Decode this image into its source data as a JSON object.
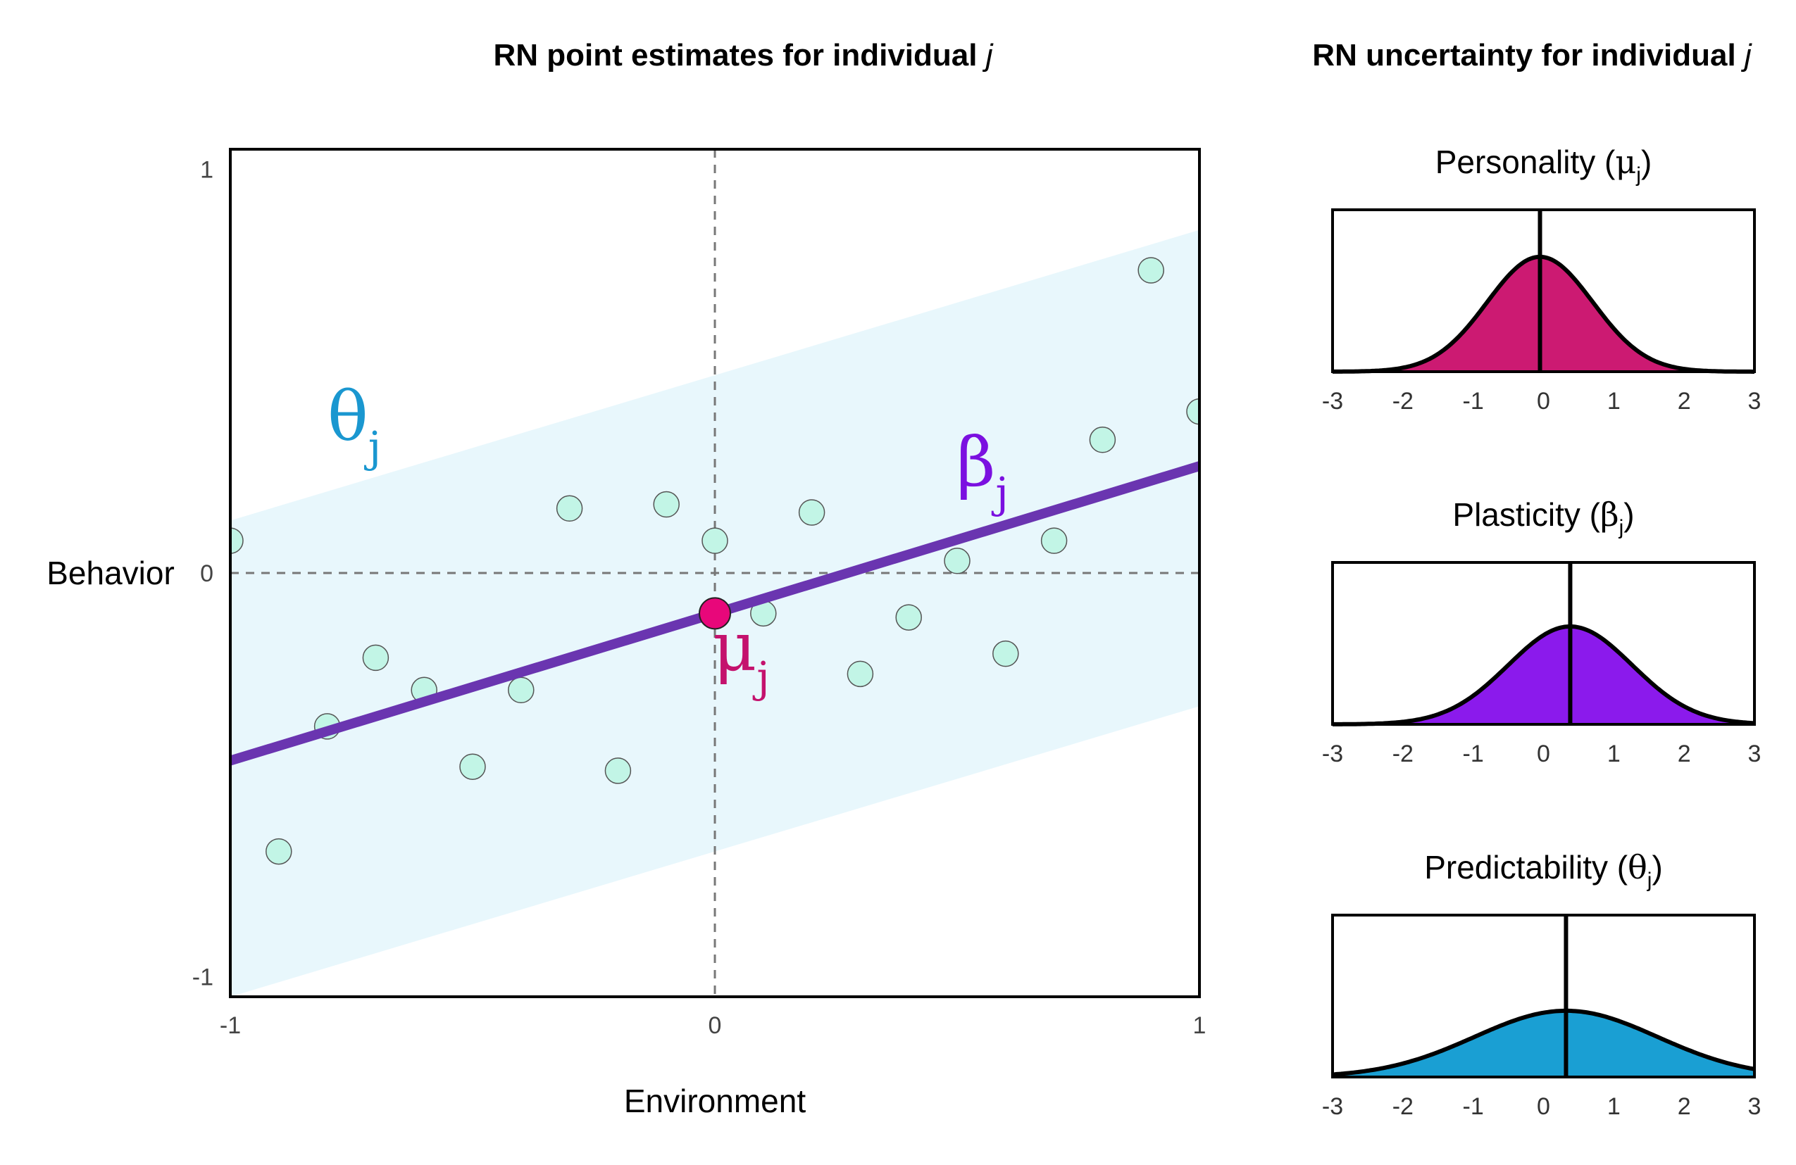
{
  "chart_data": [
    {
      "type": "scatter",
      "title": "RN point estimates for individual",
      "title_italic": "j",
      "xlabel": "Environment",
      "ylabel": "Behavior",
      "xlim": [
        -1,
        1
      ],
      "ylim": [
        -1.05,
        1.05
      ],
      "xticks": [
        "-1",
        "0",
        "1"
      ],
      "yticks": [
        "1",
        "0",
        "-1"
      ],
      "reference_lines": {
        "x": 0,
        "y": 0,
        "style": "dashed",
        "color": "#777777"
      },
      "points": [
        {
          "x": -1.0,
          "y": 0.08
        },
        {
          "x": -0.9,
          "y": -0.69
        },
        {
          "x": -0.8,
          "y": -0.38
        },
        {
          "x": -0.7,
          "y": -0.21
        },
        {
          "x": -0.6,
          "y": -0.29
        },
        {
          "x": -0.5,
          "y": -0.48
        },
        {
          "x": -0.4,
          "y": -0.29
        },
        {
          "x": -0.3,
          "y": 0.16
        },
        {
          "x": -0.2,
          "y": -0.49
        },
        {
          "x": -0.1,
          "y": 0.17
        },
        {
          "x": 0.0,
          "y": 0.08
        },
        {
          "x": 0.1,
          "y": -0.1
        },
        {
          "x": 0.2,
          "y": 0.15
        },
        {
          "x": 0.3,
          "y": -0.25
        },
        {
          "x": 0.4,
          "y": -0.11
        },
        {
          "x": 0.5,
          "y": 0.03
        },
        {
          "x": 0.6,
          "y": -0.2
        },
        {
          "x": 0.7,
          "y": 0.08
        },
        {
          "x": 0.8,
          "y": 0.33
        },
        {
          "x": 0.9,
          "y": 0.75
        },
        {
          "x": 1.0,
          "y": 0.4
        }
      ],
      "point_color": "#c2f5e6",
      "line": {
        "x": [
          -1,
          1
        ],
        "y": [
          -0.465,
          0.265
        ],
        "color": "#6a35b0"
      },
      "band": {
        "x": [
          -1,
          1
        ],
        "lower": [
          -1.05,
          -0.33
        ],
        "upper": [
          0.13,
          0.85
        ],
        "color": "#e8f7fc"
      },
      "highlight_point": {
        "x": 0,
        "y": -0.1,
        "color": "#e8077a"
      },
      "labels": {
        "theta": {
          "symbol": "θ",
          "sub": "j",
          "color": "#1a97d0"
        },
        "beta": {
          "symbol": "β",
          "sub": "j",
          "color": "#7b10e0"
        },
        "mu": {
          "symbol": "μ",
          "sub": "j",
          "color": "#c4126d"
        }
      }
    },
    {
      "type": "area",
      "title": "RN uncertainty for individual",
      "title_italic": "j",
      "panels": [
        {
          "label": "Personality",
          "symbol": "μ",
          "sub": "j",
          "mean": -0.05,
          "sd": 0.75,
          "color": "#cc1a72",
          "xlim": [
            -3,
            3
          ],
          "ylim": [
            0,
            0.75
          ]
        },
        {
          "label": "Plasticity",
          "symbol": "β",
          "sub": "j",
          "mean": 0.38,
          "sd": 0.88,
          "color": "#8b1aec",
          "xlim": [
            -3,
            3
          ],
          "ylim": [
            0,
            0.75
          ]
        },
        {
          "label": "Predictability",
          "symbol": "θ",
          "sub": "j",
          "mean": 0.32,
          "sd": 1.3,
          "color": "#1a9fd3",
          "xlim": [
            -3,
            3
          ],
          "ylim": [
            0,
            0.75
          ]
        }
      ],
      "xticks": [
        "-3",
        "-2",
        "-1",
        "0",
        "1",
        "2",
        "3"
      ]
    }
  ]
}
